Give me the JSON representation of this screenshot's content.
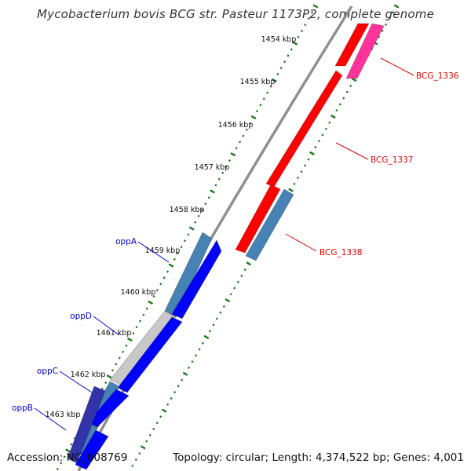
{
  "title": "Mycobacterium bovis BCG str. Pasteur 1173P2, complete genome",
  "footer": {
    "accession": "Accession: NC_008769",
    "topology": "Topology: circular; Length: 4,374,522 bp; Genes: 4,001"
  },
  "colors": {
    "backbone": "#8c8c8c",
    "tick": "#1a7a1a",
    "gene_red": "#ff0000",
    "gene_pink": "#ff3399",
    "gene_blue": "#0000ff",
    "gene_steelblue": "#4682b4",
    "gene_gray": "#c8c8c8",
    "gene_navy": "#3333aa",
    "label_red": "#dd0000",
    "label_blue": "#0000cc"
  },
  "scale": {
    "unit": "kbp",
    "labels": [
      "1454 kbp",
      "1455 kbp",
      "1456 kbp",
      "1457 kbp",
      "1458 kbp",
      "1459 kbp",
      "1460 kbp",
      "1461 kbp",
      "1462 kbp",
      "1463 kbp"
    ]
  },
  "genes": [
    {
      "label": "BCG_1336",
      "color": "pink"
    },
    {
      "label": "BCG_1337",
      "color": "red"
    },
    {
      "label": "BCG_1338",
      "color": "steelblue"
    },
    {
      "label": "oppA",
      "color": "steelblue"
    },
    {
      "label": "oppD",
      "color": "gray"
    },
    {
      "label": "oppC",
      "color": "steelblue"
    },
    {
      "label": "oppB",
      "color": "navy"
    }
  ]
}
